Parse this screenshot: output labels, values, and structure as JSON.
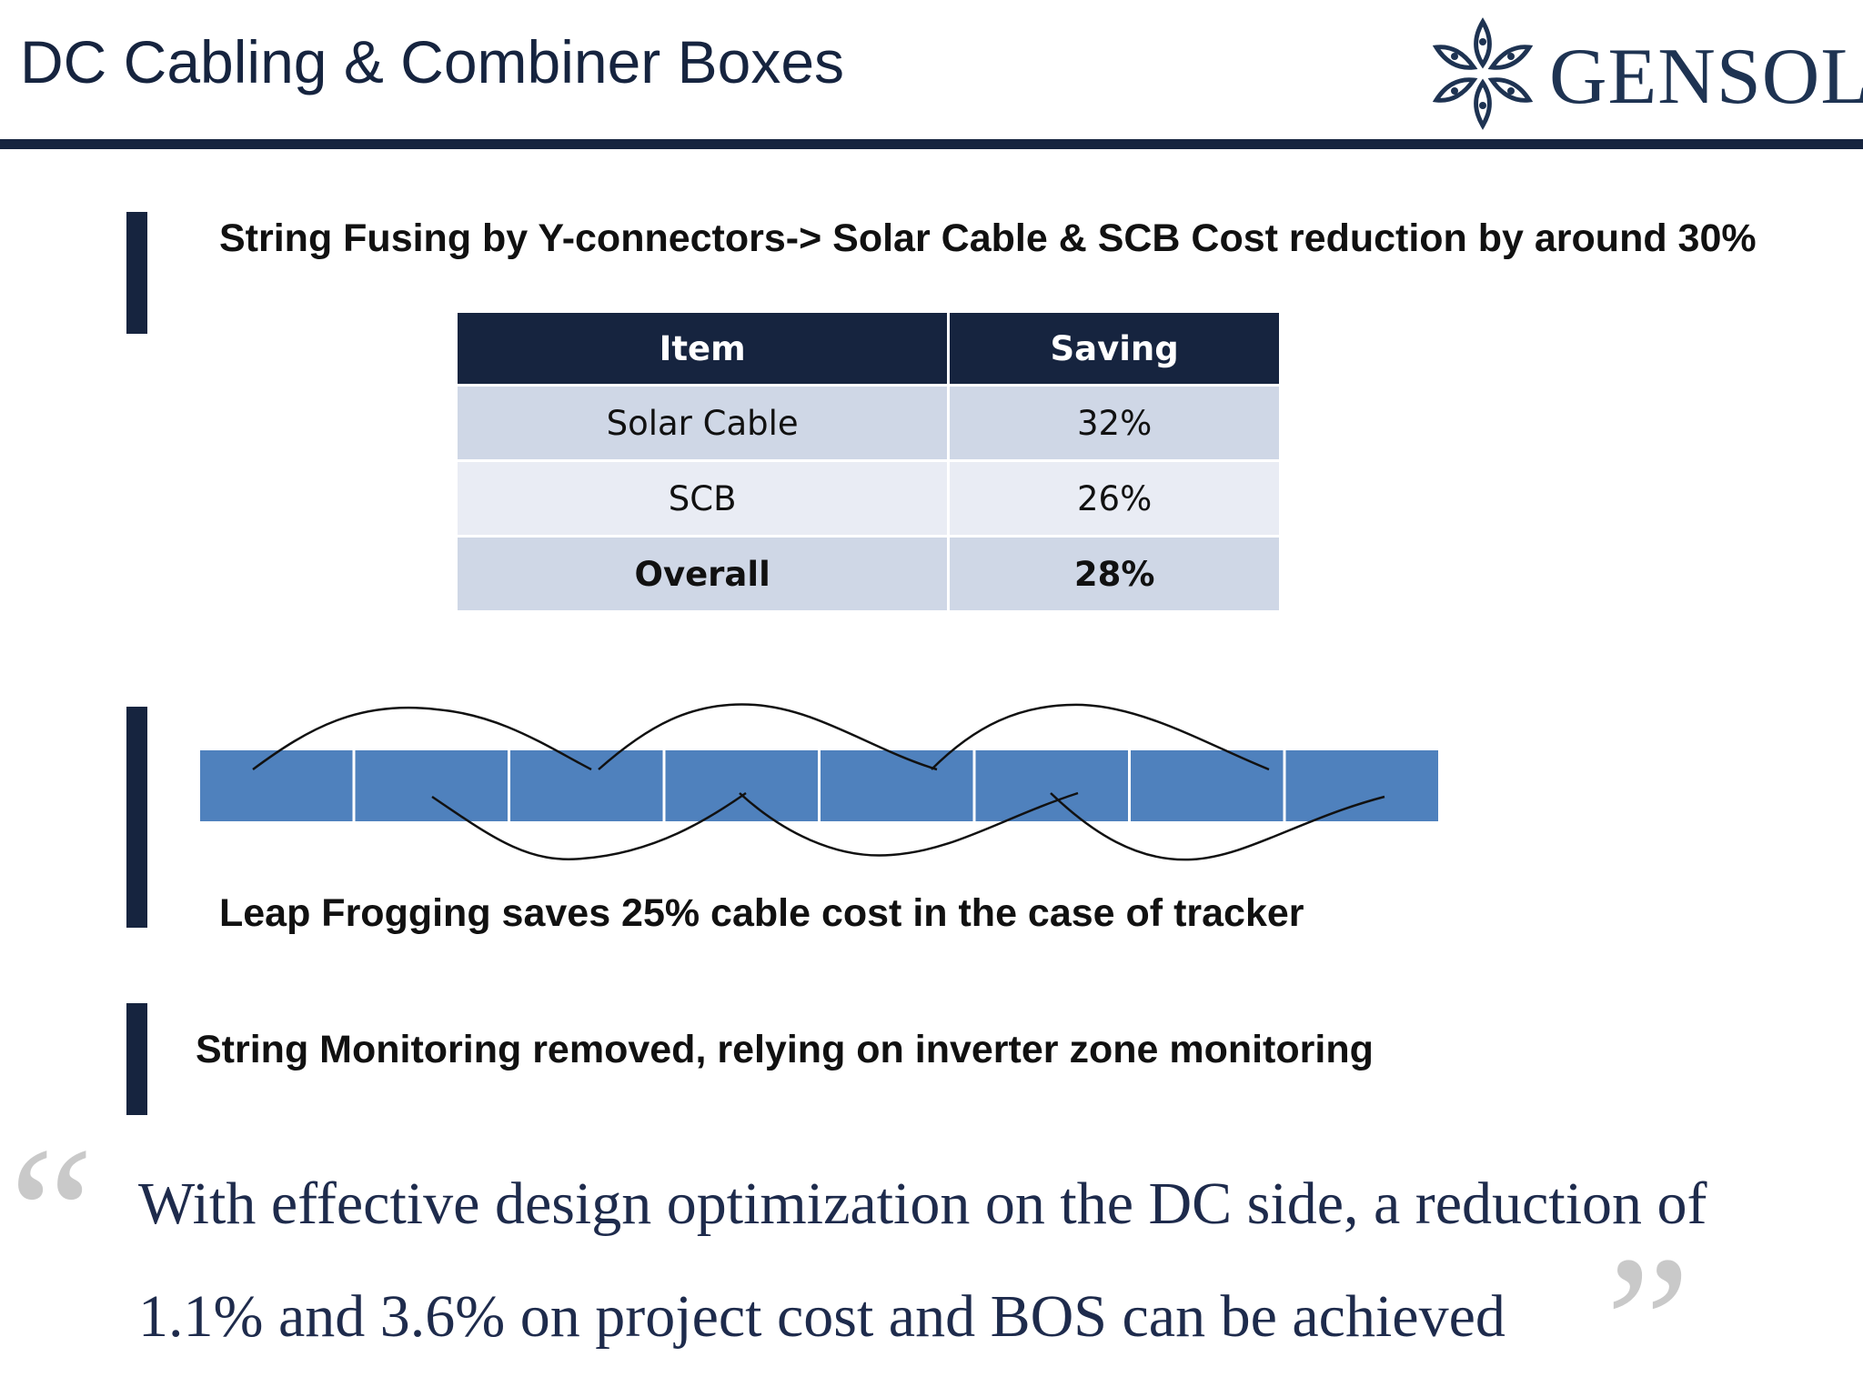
{
  "slide": {
    "title": "DC Cabling & Combiner Boxes"
  },
  "logo": {
    "text": "GENSOL",
    "icon": "flower-star-icon",
    "color": "#1e3352"
  },
  "colors": {
    "accent": "#16243f",
    "table_row_odd": "#cfd7e6",
    "table_row_even": "#e9ecf4",
    "panel_blue": "#4f81bd",
    "quote_text": "#1e2b4c"
  },
  "bullets": {
    "string_fusing": "String Fusing by Y-connectors-> Solar Cable & SCB Cost reduction by  around 30%",
    "leap_frogging": "Leap Frogging saves 25% cable cost in the case of tracker",
    "string_monitoring": "String Monitoring removed, relying on inverter zone monitoring"
  },
  "savings_table": {
    "headers": [
      "Item",
      "Saving"
    ],
    "rows": [
      {
        "item": "Solar Cable",
        "saving": "32%"
      },
      {
        "item": "SCB",
        "saving": "26%"
      },
      {
        "item": "Overall",
        "saving": "28%"
      }
    ]
  },
  "leap_frog_diagram": {
    "module_count": 8
  },
  "quote": {
    "open_mark": "“",
    "close_mark": "”",
    "text": "With effective design optimization on the DC side, a reduction of 1.1% and 3.6% on project cost and BOS can be achieved"
  }
}
